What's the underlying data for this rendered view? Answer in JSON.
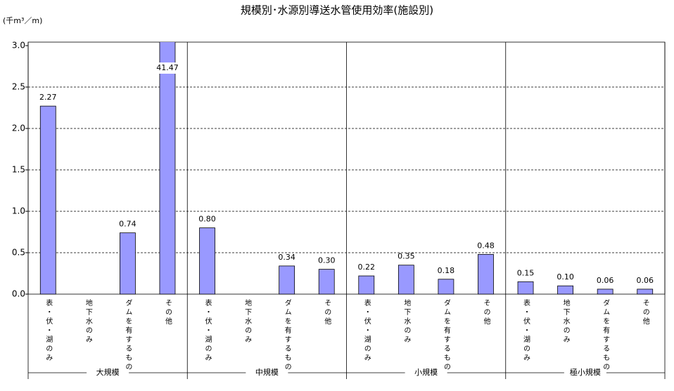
{
  "chart_data": {
    "type": "bar",
    "title": "規模別･水源別導送水管使用効率(施設別)",
    "y_label": "(千m³／m)",
    "groups": [
      "大規模",
      "中規模",
      "小規模",
      "極小規模"
    ],
    "categories": [
      "表・伏・湖のみ",
      "地下水のみ",
      "ダムを有するもの",
      "その他",
      "表・伏・湖のみ",
      "地下水のみ",
      "ダムを有するもの",
      "その他",
      "表・伏・湖のみ",
      "地下水のみ",
      "ダムを有するもの",
      "その他",
      "表・伏・湖のみ",
      "地下水のみ",
      "ダムを有するもの",
      "その他"
    ],
    "values": [
      2.27,
      null,
      0.74,
      41.47,
      0.8,
      null,
      0.34,
      0.3,
      0.22,
      0.35,
      0.18,
      0.48,
      0.15,
      0.1,
      0.06,
      0.06
    ],
    "value_labels": [
      "2.27",
      null,
      "0.74",
      "41.47",
      "0.80",
      null,
      "0.34",
      "0.30",
      "0.22",
      "0.35",
      "0.18",
      "0.48",
      "0.15",
      "0.10",
      "0.06",
      "0.06"
    ],
    "color": "#9999ff",
    "ylim": [
      0,
      3
    ],
    "yticks": [
      {
        "value": 0,
        "label": "0.0"
      },
      0.5,
      {
        "value": 1,
        "label": "1.0"
      },
      1.5,
      {
        "value": 2,
        "label": "2.0"
      },
      2.5,
      {
        "value": 3,
        "label": "3.0"
      }
    ],
    "grid": true
  }
}
